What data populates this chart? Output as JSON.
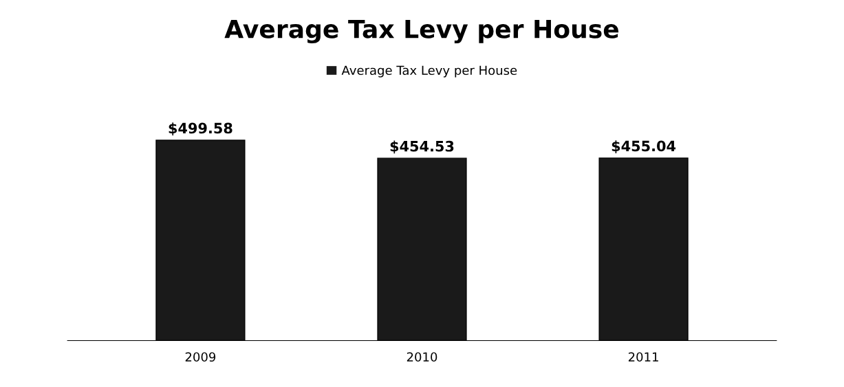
{
  "chart_data": {
    "type": "bar",
    "title": "Average Tax Levy per House",
    "categories": [
      "2009",
      "2010",
      "2011"
    ],
    "series": [
      {
        "name": "Average Tax Levy per House",
        "color": "#1a1a1a",
        "values": [
          499.58,
          454.53,
          455.04
        ],
        "value_labels": [
          "$499.58",
          "$454.53",
          "$455.04"
        ]
      }
    ],
    "legend": "top",
    "grid": false
  }
}
